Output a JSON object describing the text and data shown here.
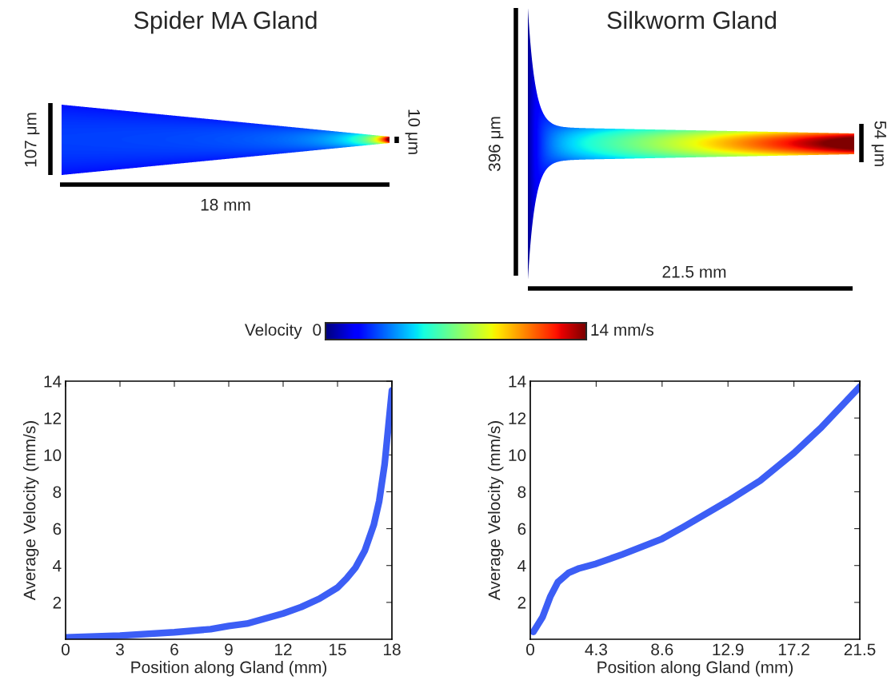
{
  "chart_data": [
    {
      "type": "other",
      "title": "Spider MA Gland",
      "annotations": [
        "107 μm",
        "10 μm",
        "18 mm"
      ]
    },
    {
      "type": "other",
      "title": "Silkworm Gland",
      "annotations": [
        "396 μm",
        "54 μm",
        "21.5 mm"
      ]
    },
    {
      "type": "other",
      "annotations": [
        "Velocity",
        "0",
        "14 mm/s"
      ]
    },
    {
      "type": "line",
      "xlabel": "Position along Gland (mm)",
      "ylabel": "Average Velocity (mm/s)",
      "xlim": [
        0,
        18
      ],
      "ylim": [
        0,
        14
      ],
      "xticks": [
        0,
        3,
        6,
        9,
        12,
        15,
        18
      ],
      "yticks": [
        2,
        4,
        6,
        8,
        10,
        12,
        14
      ],
      "grid": false,
      "marker": "none",
      "line_style": "solid",
      "series": [
        {
          "color": "#3c5ef5",
          "x": [
            0,
            3,
            6,
            8,
            9,
            10,
            12,
            13,
            14,
            15,
            15.5,
            16,
            16.5,
            17,
            17.3,
            17.6,
            17.8,
            18
          ],
          "values": [
            0.1,
            0.2,
            0.38,
            0.55,
            0.72,
            0.85,
            1.4,
            1.75,
            2.2,
            2.8,
            3.3,
            3.9,
            4.8,
            6.2,
            7.5,
            9.5,
            11.5,
            13.5
          ]
        }
      ]
    },
    {
      "type": "line",
      "xlabel": "Position along Gland (mm)",
      "ylabel": "Average Velocity (mm/s)",
      "xlim": [
        0,
        21.5
      ],
      "ylim": [
        0,
        14
      ],
      "xticks": [
        0,
        4.3,
        8.6,
        12.9,
        17.2,
        21.5
      ],
      "yticks": [
        2,
        4,
        6,
        8,
        10,
        12,
        14
      ],
      "grid": false,
      "marker": "none",
      "line_style": "solid",
      "series": [
        {
          "color": "#3c5ef5",
          "x": [
            0.2,
            0.8,
            1.3,
            1.8,
            2.5,
            3.2,
            4.3,
            6,
            8.6,
            10,
            12.9,
            15,
            17.2,
            19,
            21.5
          ],
          "values": [
            0.4,
            1.2,
            2.3,
            3.1,
            3.6,
            3.85,
            4.1,
            4.6,
            5.45,
            6.1,
            7.5,
            8.6,
            10.1,
            11.5,
            13.7
          ]
        }
      ]
    }
  ]
}
